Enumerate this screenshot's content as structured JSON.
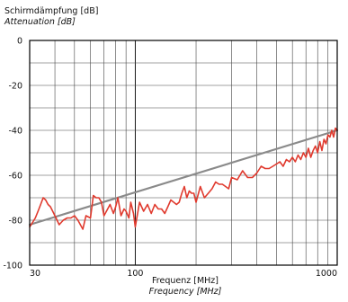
{
  "chart_data": {
    "type": "line",
    "ylabel": "Schirmdämpfung [dB]",
    "ylabel_en": "Attenuation [dB]",
    "xlabel": "Frequenz [MHz]",
    "xlabel_en": "Frequency [MHz]",
    "xscale": "log",
    "xlim": [
      30,
      1000
    ],
    "ylim": [
      -100,
      0
    ],
    "xticks": [
      {
        "value": 30,
        "label": "30"
      },
      {
        "value": 100,
        "label": "100"
      },
      {
        "value": 1000,
        "label": "1000"
      }
    ],
    "yticks": [
      {
        "value": 0,
        "label": "0"
      },
      {
        "value": -20,
        "label": "-20"
      },
      {
        "value": -40,
        "label": "-40"
      },
      {
        "value": -60,
        "label": "-60"
      },
      {
        "value": -80,
        "label": "-80"
      },
      {
        "value": -100,
        "label": "-100"
      }
    ],
    "grid": true,
    "series": [
      {
        "color": "#e03a2e",
        "x": [
          30,
          31,
          32,
          33,
          34,
          35,
          36,
          37,
          38,
          39,
          40,
          42,
          44,
          46,
          48,
          50,
          52,
          55,
          57,
          60,
          62,
          64,
          66,
          68,
          70,
          73,
          75,
          78,
          80,
          82,
          85,
          88,
          90,
          93,
          95,
          98,
          100,
          105,
          110,
          115,
          120,
          125,
          130,
          135,
          140,
          145,
          150,
          155,
          160,
          165,
          170,
          175,
          180,
          185,
          190,
          195,
          200,
          210,
          220,
          230,
          240,
          250,
          260,
          270,
          280,
          290,
          300,
          320,
          340,
          360,
          380,
          400,
          420,
          440,
          460,
          480,
          500,
          520,
          540,
          560,
          580,
          600,
          620,
          640,
          660,
          680,
          700,
          720,
          740,
          760,
          780,
          800,
          820,
          840,
          860,
          880,
          900,
          920,
          940,
          960,
          980,
          1000
        ],
        "values": [
          -83,
          -81,
          -79,
          -76,
          -73,
          -70,
          -71,
          -73,
          -74,
          -76,
          -78,
          -82,
          -80,
          -79,
          -79,
          -78,
          -80,
          -84,
          -78,
          -79,
          -69,
          -70,
          -70,
          -72,
          -78,
          -75,
          -73,
          -77,
          -74,
          -70,
          -78,
          -75,
          -76,
          -79,
          -72,
          -77,
          -83,
          -72,
          -76,
          -73,
          -77,
          -73,
          -75,
          -75,
          -77,
          -74,
          -71,
          -72,
          -73,
          -72,
          -68,
          -65,
          -70,
          -67,
          -68,
          -68,
          -72,
          -65,
          -70,
          -68,
          -66,
          -63,
          -64,
          -64,
          -65,
          -66,
          -61,
          -62,
          -58,
          -61,
          -61,
          -59,
          -56,
          -57,
          -57,
          -56,
          -55,
          -54,
          -56,
          -53,
          -54,
          -52,
          -54,
          -51,
          -53,
          -50,
          -52,
          -48,
          -52,
          -49,
          -47,
          -50,
          -45,
          -49,
          -44,
          -46,
          -42,
          -43,
          -40,
          -43,
          -39,
          -40
        ]
      },
      {
        "color": "#8a8a8a",
        "x": [
          30,
          1000
        ],
        "values": [
          -82,
          -40
        ]
      }
    ]
  }
}
